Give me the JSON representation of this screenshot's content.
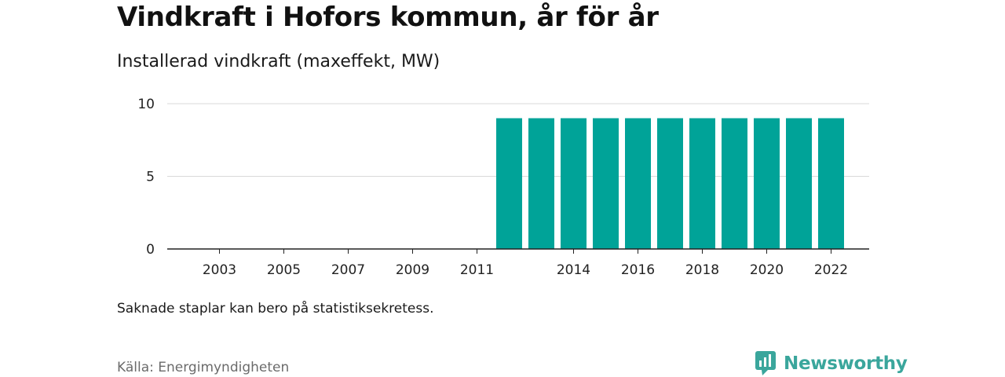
{
  "title": "Vindkraft i Hofors kommun, år för år",
  "subtitle": "Installerad vindkraft (maxeffekt, MW)",
  "note": "Saknade staplar kan bero på statistiksekretess.",
  "source": "Källa: Energimyndigheten",
  "brand": {
    "name": "Newsworthy",
    "color": "#3aa69c"
  },
  "chart_data": {
    "type": "bar",
    "color": "#00a398",
    "categories": [
      "2002",
      "2003",
      "2004",
      "2005",
      "2006",
      "2007",
      "2008",
      "2009",
      "2010",
      "2011",
      "2012",
      "2013",
      "2014",
      "2015",
      "2016",
      "2017",
      "2018",
      "2019",
      "2020",
      "2021",
      "2022"
    ],
    "values": [
      null,
      null,
      null,
      null,
      null,
      null,
      null,
      null,
      null,
      null,
      9,
      9,
      9,
      9,
      9,
      9,
      9,
      9,
      9,
      9,
      9
    ],
    "x_tick_labels": [
      "2003",
      "2005",
      "2007",
      "2009",
      "2011",
      "2014",
      "2016",
      "2018",
      "2020",
      "2022"
    ],
    "y_ticks": [
      "0",
      "5",
      "10"
    ],
    "ylim": [
      0,
      10
    ],
    "grid": true
  }
}
